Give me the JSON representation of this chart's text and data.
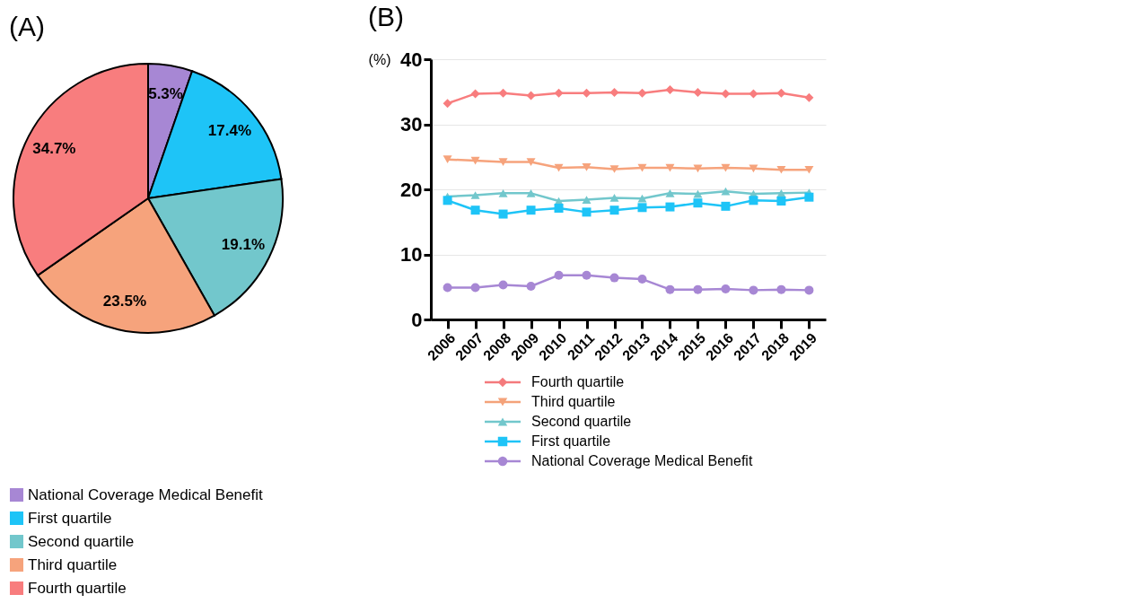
{
  "chart_data": [
    {
      "type": "pie",
      "title": "(A)",
      "categories": [
        "National Coverage Medical Benefit",
        "First quartile",
        "Second quartile",
        "Third quartile",
        "Fourth quartile"
      ],
      "values": [
        5.3,
        17.4,
        19.1,
        23.5,
        34.7
      ],
      "colors": [
        "#a787d4",
        "#1ec4f7",
        "#72c7cc",
        "#f6a37c",
        "#f87d7e"
      ],
      "value_labels": [
        "5.3%",
        "17.4%",
        "19.1%",
        "23.5%",
        "34.7%"
      ],
      "legend": "bottom"
    },
    {
      "type": "line",
      "title": "(B)",
      "ylabel": "(%)",
      "categories": [
        "2006",
        "2007",
        "2008",
        "2009",
        "2010",
        "2011",
        "2012",
        "2013",
        "2014",
        "2015",
        "2016",
        "2017",
        "2018",
        "2019"
      ],
      "ylim": [
        0,
        40
      ],
      "yticks": [
        0,
        10,
        20,
        30,
        40
      ],
      "grid": "y",
      "legend": "bottom",
      "series": [
        {
          "name": "Fourth quartile",
          "color": "#f47a7c",
          "marker": "diamond",
          "values": [
            33.2,
            34.7,
            34.8,
            34.4,
            34.8,
            34.8,
            34.9,
            34.8,
            35.3,
            34.9,
            34.7,
            34.7,
            34.8,
            34.1
          ]
        },
        {
          "name": "Third quartile",
          "color": "#f4a27a",
          "marker": "triangle-down",
          "values": [
            24.6,
            24.4,
            24.2,
            24.2,
            23.3,
            23.4,
            23.1,
            23.3,
            23.3,
            23.2,
            23.3,
            23.2,
            23.0,
            23.0
          ]
        },
        {
          "name": "Second quartile",
          "color": "#72c7cc",
          "marker": "triangle",
          "values": [
            18.9,
            19.1,
            19.4,
            19.4,
            18.2,
            18.4,
            18.7,
            18.6,
            19.4,
            19.3,
            19.7,
            19.3,
            19.4,
            19.5
          ]
        },
        {
          "name": "First quartile",
          "color": "#1ec4f7",
          "marker": "square",
          "values": [
            18.3,
            16.8,
            16.2,
            16.8,
            17.1,
            16.5,
            16.8,
            17.2,
            17.3,
            17.9,
            17.4,
            18.3,
            18.2,
            18.8
          ]
        },
        {
          "name": "National Coverage Medical Benefit",
          "color": "#a787d4",
          "marker": "circle",
          "values": [
            4.9,
            4.9,
            5.3,
            5.1,
            6.8,
            6.8,
            6.4,
            6.2,
            4.6,
            4.6,
            4.7,
            4.5,
            4.6,
            4.5
          ]
        }
      ]
    }
  ]
}
